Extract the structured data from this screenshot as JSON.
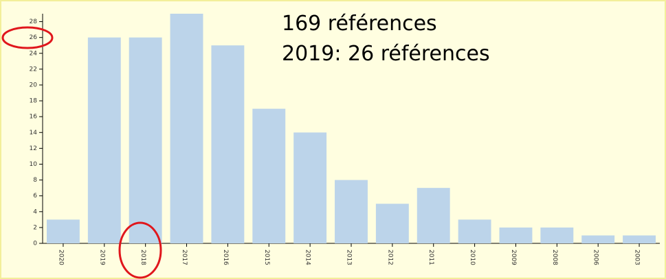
{
  "chart_data": {
    "type": "bar",
    "annotations": [
      "169 références",
      "2019: 26 références"
    ],
    "categories": [
      "2020",
      "2019",
      "2018",
      "2017",
      "2016",
      "2015",
      "2014",
      "2013",
      "2012",
      "2011",
      "2010",
      "2009",
      "2008",
      "2006",
      "2003"
    ],
    "values": [
      3,
      26,
      26,
      29,
      25,
      17,
      14,
      8,
      5,
      7,
      3,
      2,
      2,
      1,
      1
    ],
    "color": "#bcd4ea",
    "ylim": [
      0,
      29
    ],
    "yticks": [
      0,
      2,
      4,
      6,
      8,
      10,
      12,
      14,
      16,
      18,
      20,
      22,
      24,
      26,
      28
    ],
    "grid": false
  }
}
